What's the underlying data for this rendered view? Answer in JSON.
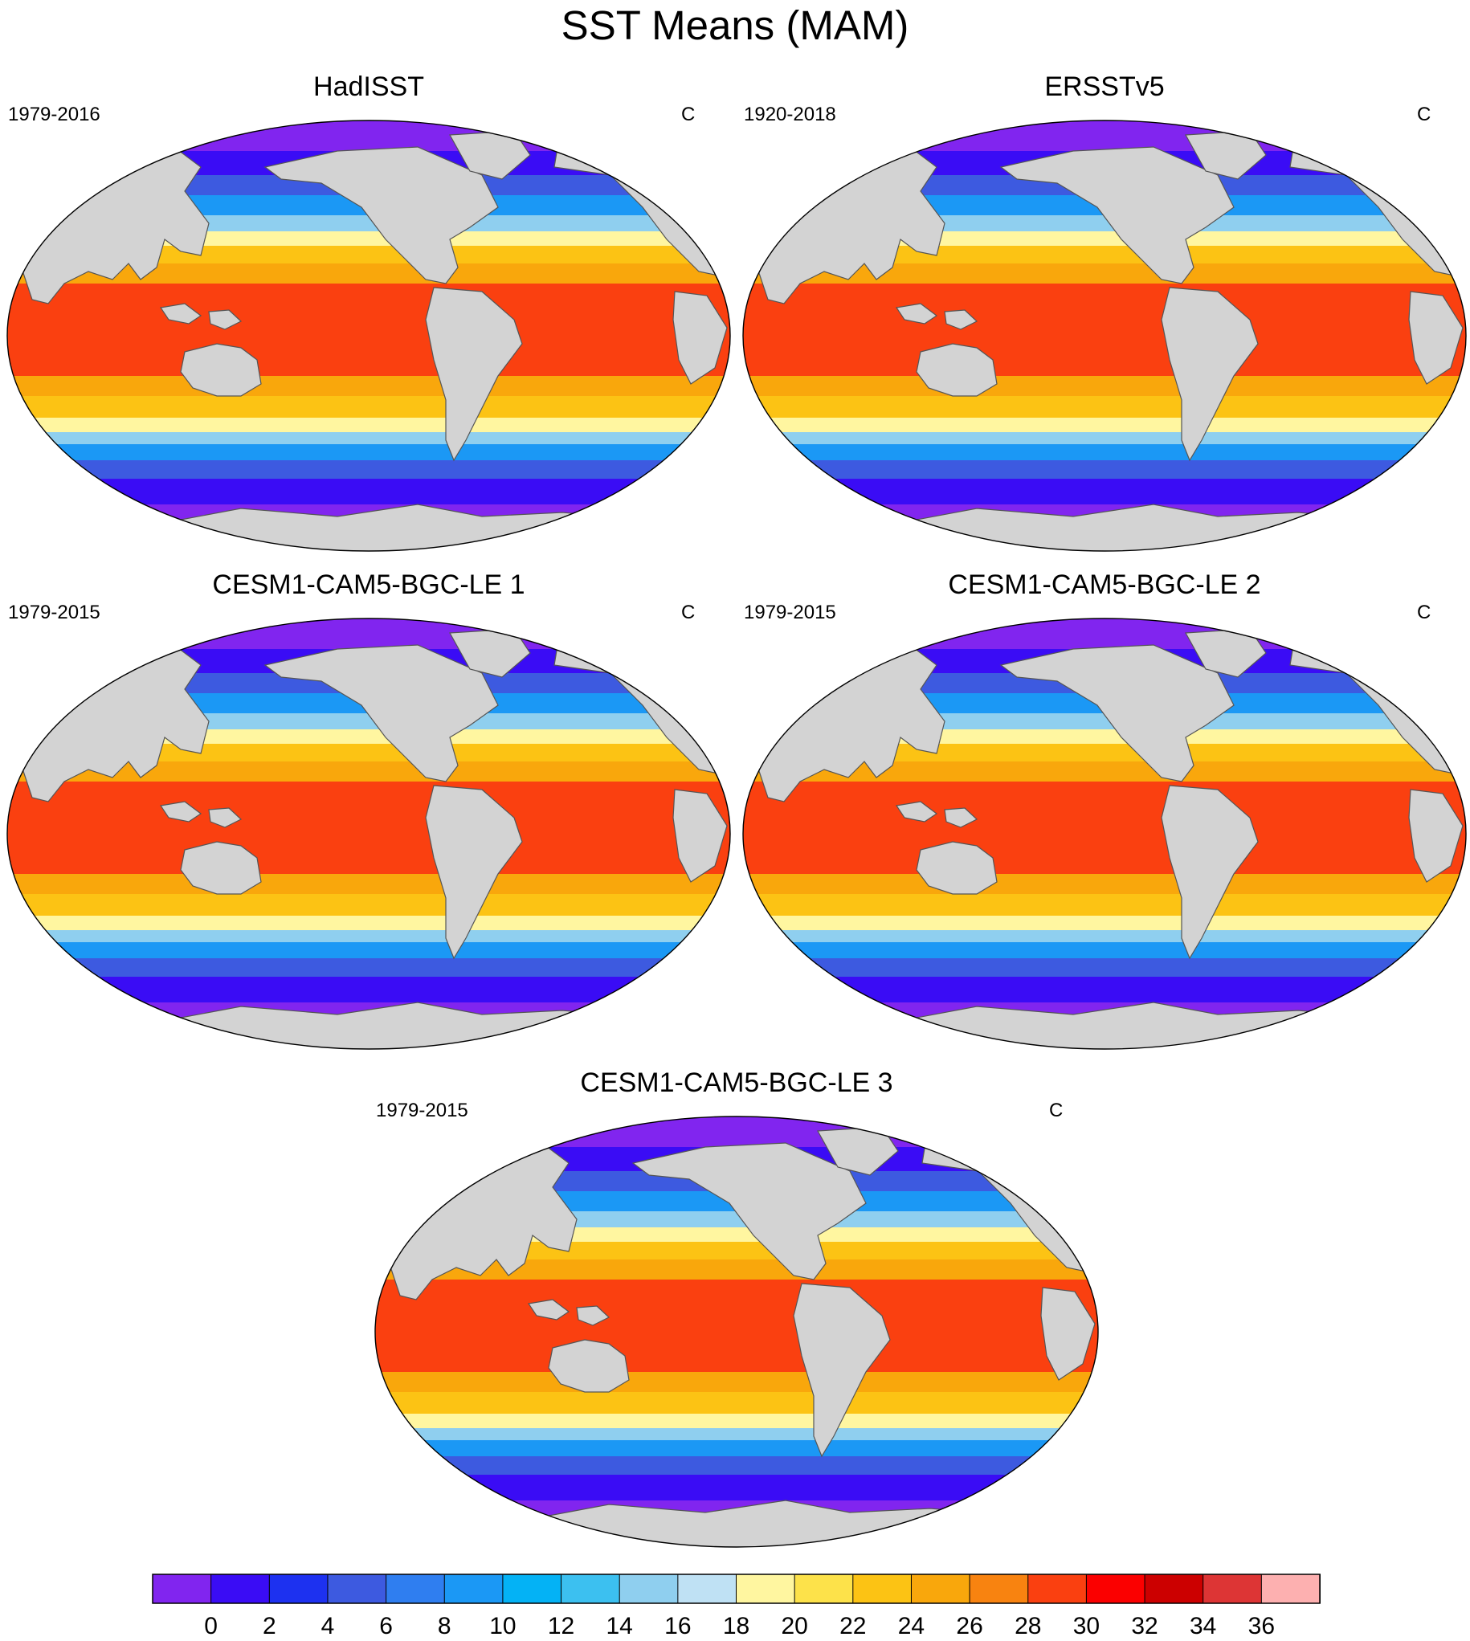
{
  "figure": {
    "title": "SST Means (MAM)"
  },
  "panels": [
    {
      "title": "HadISST",
      "period": "1979-2016",
      "units": "C"
    },
    {
      "title": "ERSSTv5",
      "period": "1920-2018",
      "units": "C"
    },
    {
      "title": "CESM1-CAM5-BGC-LE 1",
      "period": "1979-2015",
      "units": "C"
    },
    {
      "title": "CESM1-CAM5-BGC-LE 2",
      "period": "1979-2015",
      "units": "C"
    },
    {
      "title": "CESM1-CAM5-BGC-LE 3",
      "period": "1979-2015",
      "units": "C"
    }
  ],
  "colorbar": {
    "labels": [
      "0",
      "2",
      "4",
      "6",
      "8",
      "10",
      "12",
      "14",
      "16",
      "18",
      "20",
      "22",
      "24",
      "26",
      "28",
      "30",
      "32",
      "34",
      "36"
    ],
    "colors": [
      "#8125ef",
      "#3a0cf5",
      "#1d31f0",
      "#3d5ae0",
      "#2f7ef0",
      "#1b98f5",
      "#04b2f5",
      "#3cc0f0",
      "#8fcfef",
      "#bfe1f4",
      "#fff6a0",
      "#fde24a",
      "#fcc314",
      "#f9a70c",
      "#f88310",
      "#fa4010",
      "#fb0000",
      "#cc0000",
      "#dd3535",
      "#fdb0b0"
    ]
  },
  "map": {
    "ocean_colors_by_band": [
      "#8125ef",
      "#3a0cf5",
      "#3d5ae0",
      "#1b98f5",
      "#8fcfef",
      "#fff6a0",
      "#fcc314",
      "#f9a70c",
      "#fa4010"
    ],
    "land_color": "#d3d3d3"
  }
}
